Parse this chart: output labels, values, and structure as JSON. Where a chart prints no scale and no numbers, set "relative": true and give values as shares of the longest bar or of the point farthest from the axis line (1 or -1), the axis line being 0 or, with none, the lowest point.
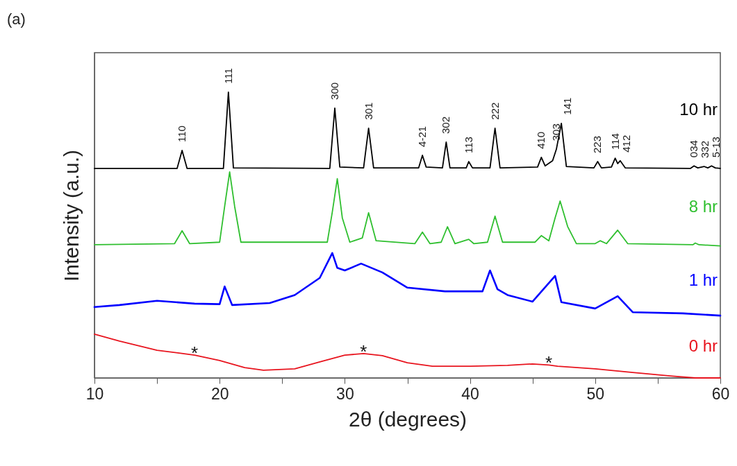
{
  "chart_data": {
    "type": "line",
    "title": "(a)",
    "xlabel": "2θ (degrees)",
    "ylabel": "Intensity (a.u.)",
    "relative": true,
    "xlim": [
      10,
      60
    ],
    "xticks": [
      10,
      {
        "value": 15,
        "label": null
      },
      20,
      {
        "value": 25,
        "label": null
      },
      30,
      {
        "value": 35,
        "label": null
      },
      40,
      {
        "value": 45,
        "label": null
      },
      50,
      {
        "value": 55,
        "label": null
      },
      60
    ],
    "grid": false,
    "marker": "none",
    "line_style": "solid",
    "series": [
      {
        "name": "10 hr",
        "color": "#000000",
        "x": [
          10,
          16.6,
          17.0,
          17.4,
          20.3,
          20.7,
          21.1,
          28.8,
          29.2,
          29.6,
          31.5,
          31.9,
          32.3,
          35.9,
          36.2,
          36.5,
          37.8,
          38.1,
          38.4,
          39.7,
          39.9,
          40.2,
          41.6,
          42.0,
          42.4,
          45.4,
          45.7,
          46.0,
          46.6,
          46.9,
          47.3,
          47.7,
          49.9,
          50.2,
          50.5,
          51.3,
          51.6,
          51.8,
          52.0,
          52.4,
          57.6,
          57.9,
          58.2,
          58.7,
          59.0,
          59.3,
          59.6,
          60
        ],
        "values": [
          0.733,
          0.733,
          0.796,
          0.733,
          0.733,
          1.0,
          0.735,
          0.733,
          0.944,
          0.738,
          0.735,
          0.874,
          0.735,
          0.735,
          0.779,
          0.738,
          0.735,
          0.825,
          0.735,
          0.735,
          0.757,
          0.735,
          0.735,
          0.874,
          0.735,
          0.738,
          0.772,
          0.742,
          0.76,
          0.8,
          0.891,
          0.74,
          0.735,
          0.757,
          0.735,
          0.738,
          0.769,
          0.75,
          0.76,
          0.735,
          0.733,
          0.742,
          0.735,
          0.74,
          0.735,
          0.742,
          0.735,
          0.733
        ]
      },
      {
        "name": "8 hr",
        "color": "#2fbf2f",
        "x": [
          10,
          16.4,
          17.0,
          17.6,
          20.0,
          20.4,
          20.8,
          21.2,
          21.7,
          28.6,
          29.0,
          29.4,
          29.8,
          30.4,
          31.4,
          31.9,
          32.5,
          35.6,
          36.2,
          36.8,
          37.7,
          38.2,
          38.8,
          39.9,
          40.3,
          41.4,
          42.0,
          42.6,
          45.2,
          45.7,
          46.3,
          46.8,
          47.2,
          47.8,
          48.5,
          50.0,
          50.4,
          50.9,
          51.8,
          52.6,
          57.8,
          58.0,
          58.3,
          60
        ],
        "values": [
          0.466,
          0.47,
          0.515,
          0.47,
          0.475,
          0.6,
          0.721,
          0.6,
          0.475,
          0.475,
          0.58,
          0.697,
          0.56,
          0.475,
          0.49,
          0.578,
          0.48,
          0.47,
          0.51,
          0.47,
          0.475,
          0.529,
          0.47,
          0.485,
          0.47,
          0.475,
          0.566,
          0.475,
          0.475,
          0.498,
          0.48,
          0.56,
          0.619,
          0.53,
          0.47,
          0.47,
          0.48,
          0.47,
          0.517,
          0.47,
          0.466,
          0.472,
          0.466,
          0.462
        ]
      },
      {
        "name": "1 hr",
        "color": "#0000ff",
        "x": [
          10,
          12,
          15,
          18,
          20,
          20.4,
          21,
          24,
          26,
          28,
          29.0,
          29.4,
          30,
          31.3,
          33,
          35,
          38,
          41,
          41.6,
          42.2,
          43,
          45,
          46.8,
          47.3,
          50,
          51.8,
          53,
          57,
          60
        ],
        "values": [
          0.248,
          0.255,
          0.27,
          0.26,
          0.258,
          0.32,
          0.255,
          0.262,
          0.29,
          0.35,
          0.437,
          0.385,
          0.376,
          0.4,
          0.369,
          0.316,
          0.303,
          0.303,
          0.376,
          0.31,
          0.29,
          0.267,
          0.357,
          0.265,
          0.243,
          0.286,
          0.23,
          0.226,
          0.218
        ]
      },
      {
        "name": "0 hr",
        "color": "#e8141e",
        "x": [
          10,
          12,
          15,
          18,
          20,
          22,
          23.5,
          26,
          28,
          30,
          31.5,
          33,
          35,
          37,
          40,
          43,
          45,
          46.3,
          47,
          50,
          53,
          56,
          58,
          60
        ],
        "values": [
          0.153,
          0.129,
          0.097,
          0.08,
          0.061,
          0.036,
          0.027,
          0.032,
          0.056,
          0.08,
          0.085,
          0.078,
          0.053,
          0.041,
          0.041,
          0.044,
          0.049,
          0.045,
          0.041,
          0.032,
          0.019,
          0.007,
          0,
          0
        ]
      }
    ],
    "annotations": [
      {
        "text": "110",
        "x": 17.0,
        "y": 0.796
      },
      {
        "text": "111",
        "x": 20.7,
        "y": 1.0
      },
      {
        "text": "300",
        "x": 29.2,
        "y": 0.944
      },
      {
        "text": "301",
        "x": 31.9,
        "y": 0.874
      },
      {
        "text": "4-21",
        "x": 36.2,
        "y": 0.779
      },
      {
        "text": "302",
        "x": 38.1,
        "y": 0.825
      },
      {
        "text": "113",
        "x": 39.9,
        "y": 0.757
      },
      {
        "text": "222",
        "x": 42.0,
        "y": 0.874
      },
      {
        "text": "410",
        "x": 45.7,
        "y": 0.772
      },
      {
        "text": "303",
        "x": 46.9,
        "y": 0.8
      },
      {
        "text": "141",
        "x": 47.3,
        "y": 0.891
      },
      {
        "text": "223",
        "x": 50.2,
        "y": 0.757
      },
      {
        "text": "114",
        "x": 51.6,
        "y": 0.769
      },
      {
        "text": "412",
        "x": 52.0,
        "y": 0.76
      },
      {
        "text": "034",
        "x": 57.9,
        "y": 0.742
      },
      {
        "text": "332",
        "x": 58.7,
        "y": 0.74
      },
      {
        "text": "5-13",
        "x": 59.3,
        "y": 0.742
      },
      {
        "text": "*",
        "x": 18.0,
        "y": 0.08
      },
      {
        "text": "*",
        "x": 31.5,
        "y": 0.085
      },
      {
        "text": "*",
        "x": 46.3,
        "y": 0.045
      }
    ]
  }
}
